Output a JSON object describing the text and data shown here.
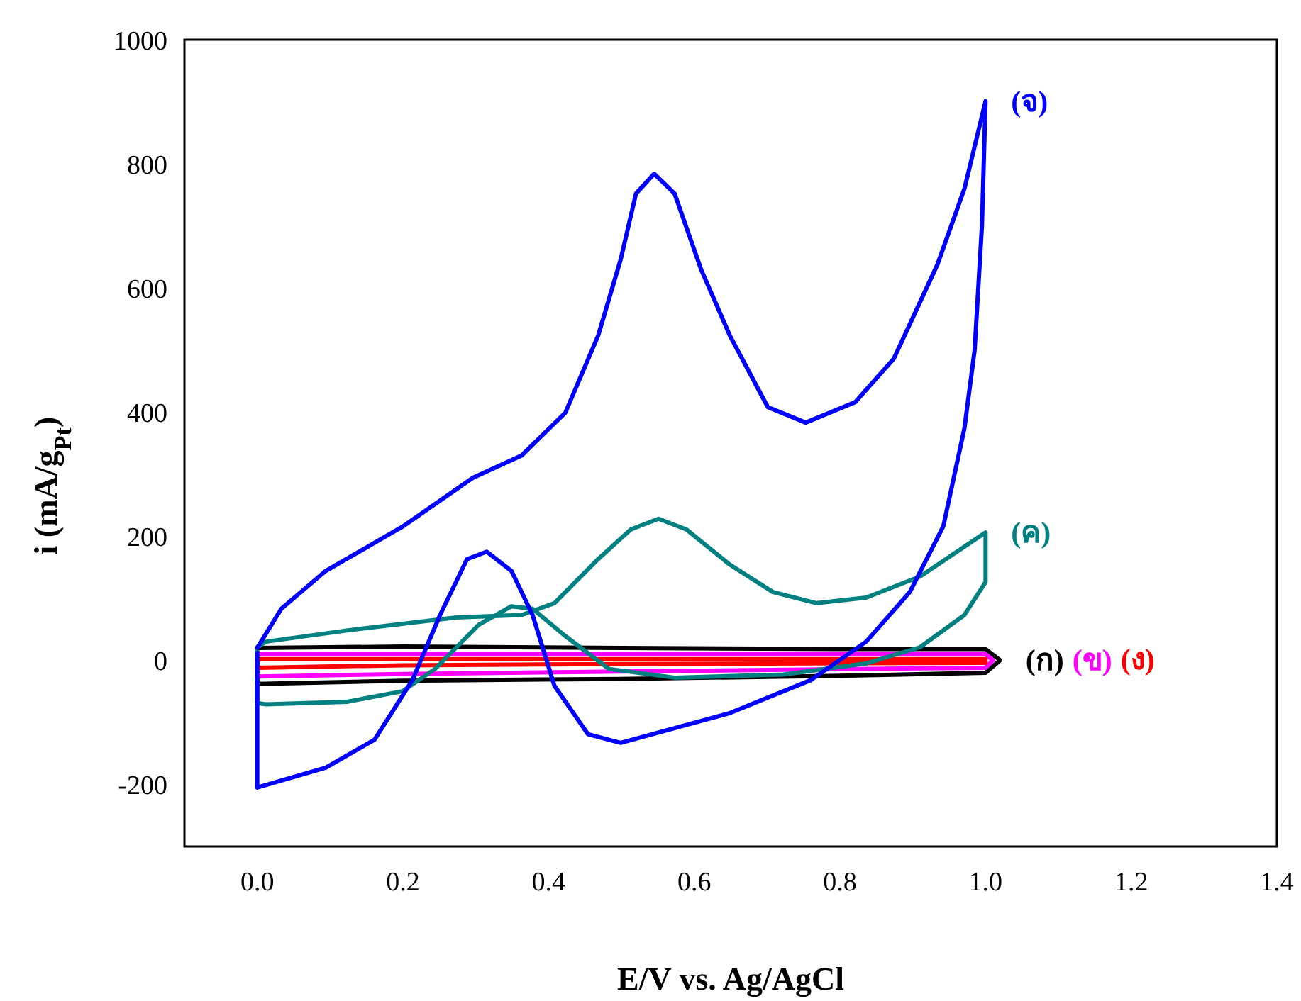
{
  "chart_data": {
    "type": "line",
    "xlabel": "E/V vs. Ag/AgCl",
    "ylabel": "i (mA/g$_{Pt}$)",
    "xlim": [
      -0.1,
      1.4
    ],
    "ylim": [
      -300,
      1000
    ],
    "xticks": [
      {
        "value": 0,
        "label": "0.0"
      },
      {
        "value": 0.2,
        "label": "0.2"
      },
      {
        "value": 0.4,
        "label": "0.4"
      },
      {
        "value": 0.6,
        "label": "0.6"
      },
      {
        "value": 0.8,
        "label": "0.8"
      },
      {
        "value": 1,
        "label": "1.0"
      },
      {
        "value": 1.2,
        "label": "1.2"
      },
      {
        "value": 1.4,
        "label": "1.4"
      }
    ],
    "yticks": [
      -200,
      0,
      200,
      400,
      600,
      800,
      1000
    ],
    "series": [
      {
        "name": "(ก)",
        "color": "#000000",
        "x": [
          0,
          0.2,
          0.5,
          0.8,
          1.0,
          1.02,
          1.0,
          0.8,
          0.5,
          0.2,
          0,
          0
        ],
        "values": [
          20,
          22,
          20,
          18,
          18,
          0,
          -20,
          -25,
          -30,
          -33,
          -38,
          14
        ]
      },
      {
        "name": "(ข)",
        "color": "#ff00ff",
        "x": [
          0,
          0.5,
          1.0,
          1.01,
          1.0,
          0.5,
          0.2,
          0,
          0
        ],
        "values": [
          10,
          10,
          10,
          0,
          -12,
          -18,
          -22,
          -26,
          5
        ]
      },
      {
        "name": "(ง)",
        "color": "#ff0000",
        "x": [
          0,
          0.5,
          1.0,
          1.0,
          0.5,
          0.2,
          0,
          0
        ],
        "values": [
          2,
          2,
          2,
          -4,
          -6,
          -8,
          -12,
          -1
        ]
      },
      {
        "name": "(ค)",
        "color": "#008080",
        "x": [
          0,
          0.012,
          0.123,
          0.273,
          0.363,
          0.408,
          0.468,
          0.513,
          0.551,
          0.589,
          0.649,
          0.708,
          0.768,
          0.836,
          0.91,
          1.0,
          1.0,
          0.971,
          0.91,
          0.836,
          0.723,
          0.573,
          0.483,
          0.423,
          0.378,
          0.349,
          0.304,
          0.244,
          0.199,
          0.123,
          0.012,
          0,
          0
        ],
        "values": [
          21,
          30,
          48,
          69,
          73,
          92,
          163,
          211,
          228,
          211,
          154,
          110,
          92,
          101,
          135,
          206,
          126,
          73,
          21,
          -5,
          -23,
          -28,
          -14,
          39,
          83,
          87,
          57,
          -14,
          -50,
          -67,
          -71,
          -69,
          15
        ]
      },
      {
        "name": "(จ)",
        "color": "#0000ff",
        "x": [
          0,
          0.033,
          0.094,
          0.199,
          0.296,
          0.363,
          0.423,
          0.468,
          0.499,
          0.52,
          0.545,
          0.573,
          0.61,
          0.649,
          0.701,
          0.753,
          0.821,
          0.874,
          0.934,
          0.971,
          1.0,
          0.995,
          0.985,
          0.971,
          0.942,
          0.896,
          0.836,
          0.76,
          0.649,
          0.499,
          0.454,
          0.408,
          0.378,
          0.349,
          0.315,
          0.288,
          0.251,
          0.213,
          0.161,
          0.094,
          0,
          0
        ],
        "values": [
          20,
          83,
          144,
          215,
          294,
          330,
          399,
          523,
          646,
          752,
          784,
          752,
          628,
          523,
          408,
          383,
          416,
          486,
          638,
          760,
          901,
          700,
          500,
          374,
          216,
          110,
          30,
          -32,
          -85,
          -133,
          -119,
          -41,
          73,
          144,
          175,
          163,
          73,
          -32,
          -128,
          -173,
          -205,
          12
        ]
      }
    ]
  }
}
